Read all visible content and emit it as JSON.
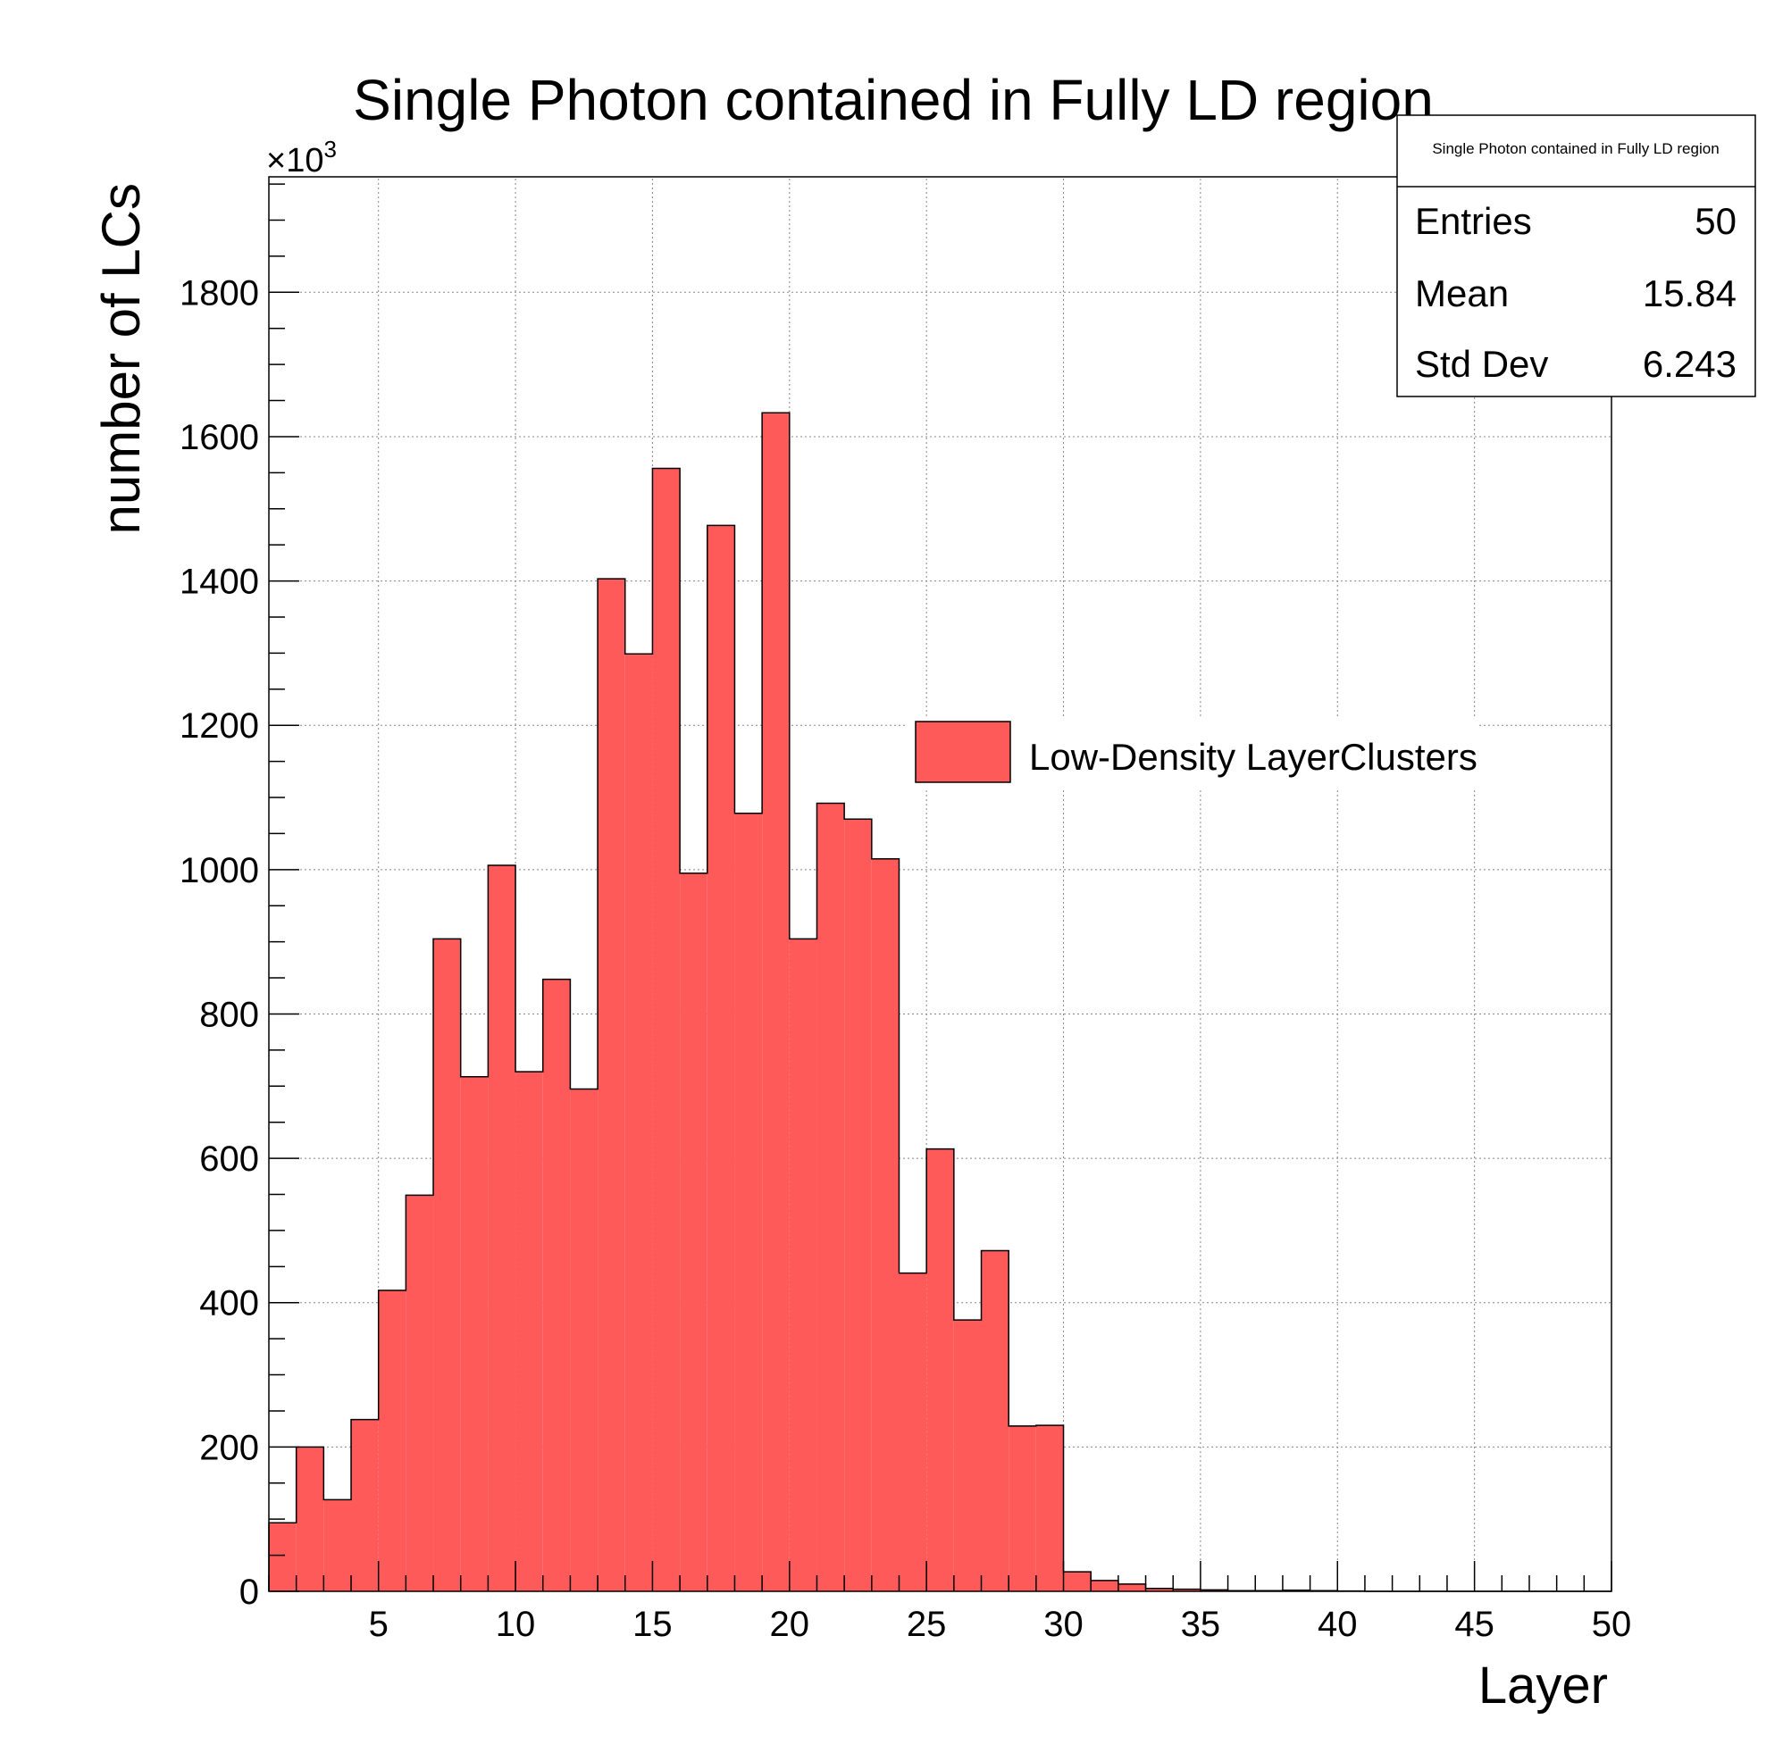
{
  "chart_data": {
    "type": "bar",
    "title": "Single Photon contained in Fully LD region",
    "xlabel": "Layer",
    "ylabel": "number of LCs",
    "y_multiplier": "×10",
    "y_multiplier_exponent": "3",
    "xlim": [
      1,
      50
    ],
    "ylim": [
      0,
      1960
    ],
    "x_ticks": [
      5,
      10,
      15,
      20,
      25,
      30,
      35,
      40,
      45,
      50
    ],
    "y_ticks": [
      0,
      200,
      400,
      600,
      800,
      1000,
      1200,
      1400,
      1600,
      1800
    ],
    "grid": true,
    "bin_edges_start": 1,
    "bin_width": 1,
    "series": [
      {
        "name": "Low-Density LayerClusters",
        "values": [
          95,
          200,
          127,
          238,
          417,
          549,
          904,
          713,
          1006,
          720,
          848,
          696,
          1403,
          1299,
          1556,
          995,
          1477,
          1078,
          1633,
          904,
          1092,
          1070,
          1015,
          441,
          613,
          376,
          472,
          229,
          230,
          27,
          15,
          10,
          4,
          3,
          2,
          1,
          1,
          1.5,
          1,
          0.5,
          0,
          0,
          0,
          0,
          0,
          0,
          0,
          0,
          0
        ]
      }
    ],
    "colors": {
      "fill": "#fe5a5a",
      "stroke": "#000000",
      "grid": "#888888"
    },
    "legend": {
      "label": "Low-Density LayerClusters",
      "placement": "middle-right"
    },
    "stats_box": {
      "title": "Single Photon contained in Fully LD region",
      "rows": [
        {
          "label": "Entries",
          "value": "50"
        },
        {
          "label": "Mean",
          "value": "15.84"
        },
        {
          "label": "Std Dev",
          "value": "6.243"
        }
      ]
    }
  }
}
